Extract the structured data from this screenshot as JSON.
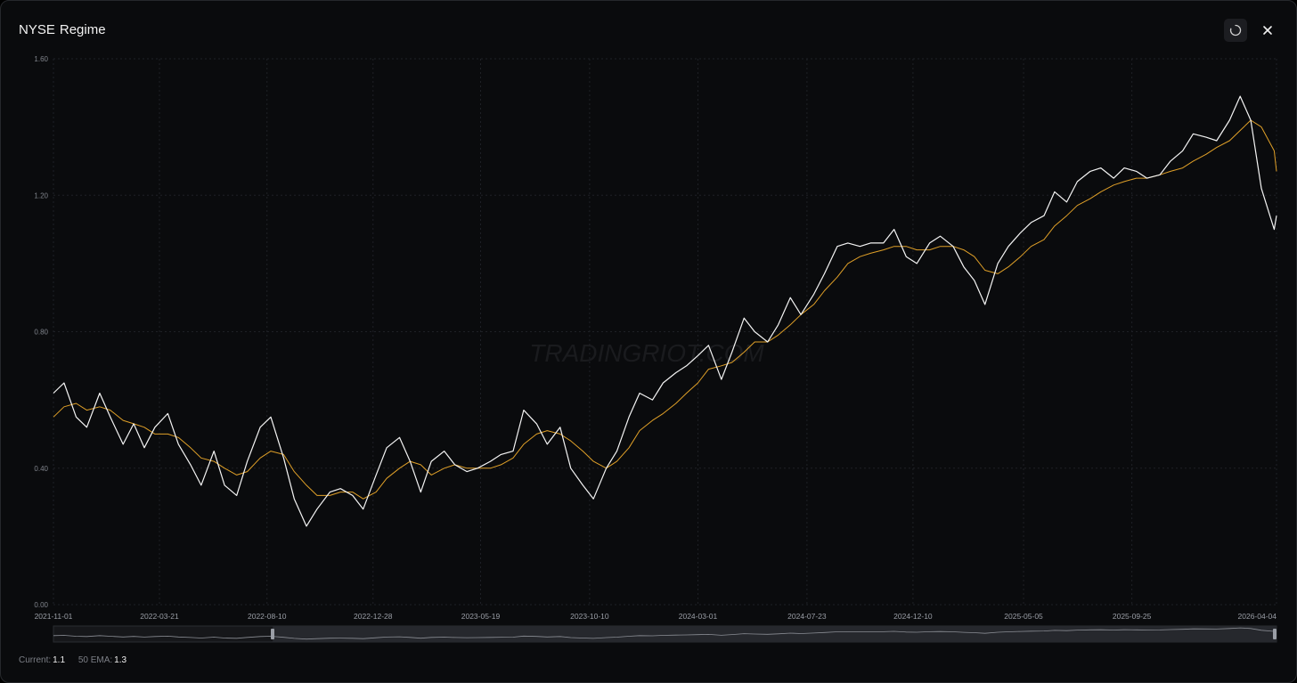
{
  "header": {
    "title": [
      "NYSE",
      "Regime"
    ]
  },
  "chart_data": {
    "type": "line",
    "watermark": "TRADINGRIOT.COM",
    "x": [
      "2021-11-01",
      "2021-11-15",
      "2021-12-01",
      "2021-12-15",
      "2022-01-01",
      "2022-01-15",
      "2022-02-01",
      "2022-02-15",
      "2022-03-01",
      "2022-03-15",
      "2022-04-01",
      "2022-04-15",
      "2022-05-01",
      "2022-05-15",
      "2022-06-01",
      "2022-06-15",
      "2022-07-01",
      "2022-07-15",
      "2022-08-01",
      "2022-08-15",
      "2022-09-01",
      "2022-09-15",
      "2022-10-01",
      "2022-10-15",
      "2022-11-01",
      "2022-11-15",
      "2022-12-01",
      "2022-12-15",
      "2023-01-01",
      "2023-01-15",
      "2023-02-01",
      "2023-02-15",
      "2023-03-01",
      "2023-03-15",
      "2023-04-01",
      "2023-04-15",
      "2023-05-01",
      "2023-05-15",
      "2023-06-01",
      "2023-06-15",
      "2023-07-01",
      "2023-07-15",
      "2023-08-01",
      "2023-08-15",
      "2023-09-01",
      "2023-09-15",
      "2023-10-01",
      "2023-10-15",
      "2023-11-01",
      "2023-11-15",
      "2023-12-01",
      "2023-12-15",
      "2024-01-01",
      "2024-01-15",
      "2024-02-01",
      "2024-02-15",
      "2024-03-01",
      "2024-03-15",
      "2024-04-01",
      "2024-04-15",
      "2024-05-01",
      "2024-05-15",
      "2024-06-01",
      "2024-06-15",
      "2024-07-01",
      "2024-07-15",
      "2024-08-01",
      "2024-08-15",
      "2024-09-01",
      "2024-09-15",
      "2024-10-01",
      "2024-10-15",
      "2024-11-01",
      "2024-11-15",
      "2024-12-01",
      "2024-12-15",
      "2025-01-01",
      "2025-01-15",
      "2025-02-01",
      "2025-02-15",
      "2025-03-01",
      "2025-03-15",
      "2025-04-01",
      "2025-04-15",
      "2025-05-01",
      "2025-05-15",
      "2025-06-01",
      "2025-06-15",
      "2025-07-01",
      "2025-07-15",
      "2025-08-01",
      "2025-08-15",
      "2025-09-01",
      "2025-09-15",
      "2025-10-01",
      "2025-10-15",
      "2025-11-01",
      "2025-11-15",
      "2025-12-01",
      "2025-12-15",
      "2026-01-01",
      "2026-01-15",
      "2026-02-01",
      "2026-02-15",
      "2026-03-01",
      "2026-03-15",
      "2026-04-01",
      "2026-04-04"
    ],
    "series": [
      {
        "color": "#f4f4f4",
        "values": [
          0.62,
          0.65,
          0.55,
          0.52,
          0.62,
          0.55,
          0.47,
          0.53,
          0.46,
          0.52,
          0.56,
          0.47,
          0.41,
          0.35,
          0.45,
          0.35,
          0.32,
          0.42,
          0.52,
          0.55,
          0.43,
          0.31,
          0.23,
          0.28,
          0.33,
          0.34,
          0.32,
          0.28,
          0.38,
          0.46,
          0.49,
          0.42,
          0.33,
          0.42,
          0.45,
          0.41,
          0.39,
          0.4,
          0.42,
          0.44,
          0.45,
          0.57,
          0.53,
          0.47,
          0.52,
          0.4,
          0.35,
          0.31,
          0.4,
          0.45,
          0.55,
          0.62,
          0.6,
          0.65,
          0.68,
          0.7,
          0.73,
          0.76,
          0.66,
          0.74,
          0.84,
          0.8,
          0.77,
          0.82,
          0.9,
          0.85,
          0.91,
          0.97,
          1.05,
          1.06,
          1.05,
          1.06,
          1.06,
          1.1,
          1.02,
          1.0,
          1.06,
          1.08,
          1.05,
          0.99,
          0.95,
          0.88,
          1.0,
          1.05,
          1.09,
          1.12,
          1.14,
          1.21,
          1.18,
          1.24,
          1.27,
          1.28,
          1.25,
          1.28,
          1.27,
          1.25,
          1.26,
          1.3,
          1.33,
          1.38,
          1.37,
          1.36,
          1.42,
          1.49,
          1.42,
          1.22,
          1.1,
          1.14
        ]
      },
      {
        "color": "#e0a028",
        "values": [
          0.55,
          0.58,
          0.59,
          0.57,
          0.58,
          0.57,
          0.54,
          0.53,
          0.52,
          0.5,
          0.5,
          0.49,
          0.46,
          0.43,
          0.42,
          0.4,
          0.38,
          0.39,
          0.43,
          0.45,
          0.44,
          0.39,
          0.35,
          0.32,
          0.32,
          0.33,
          0.33,
          0.31,
          0.33,
          0.37,
          0.4,
          0.42,
          0.41,
          0.38,
          0.4,
          0.41,
          0.4,
          0.4,
          0.4,
          0.41,
          0.43,
          0.47,
          0.5,
          0.51,
          0.5,
          0.48,
          0.45,
          0.42,
          0.4,
          0.42,
          0.46,
          0.51,
          0.54,
          0.56,
          0.59,
          0.62,
          0.65,
          0.69,
          0.7,
          0.71,
          0.74,
          0.77,
          0.77,
          0.79,
          0.82,
          0.85,
          0.88,
          0.92,
          0.96,
          1.0,
          1.02,
          1.03,
          1.04,
          1.05,
          1.05,
          1.04,
          1.04,
          1.05,
          1.05,
          1.04,
          1.02,
          0.98,
          0.97,
          0.99,
          1.02,
          1.05,
          1.07,
          1.11,
          1.14,
          1.17,
          1.19,
          1.21,
          1.23,
          1.24,
          1.25,
          1.25,
          1.26,
          1.27,
          1.28,
          1.3,
          1.32,
          1.34,
          1.36,
          1.39,
          1.42,
          1.4,
          1.33,
          1.27
        ]
      }
    ],
    "xlim": [
      "2021-11-01",
      "2026-04-04"
    ],
    "xticks": [
      "2021-11-01",
      "2022-03-21",
      "2022-08-10",
      "2022-12-28",
      "2023-05-19",
      "2023-10-10",
      "2024-03-01",
      "2024-07-23",
      "2024-12-10",
      "2025-05-05",
      "2025-09-25",
      "2026-04-04"
    ],
    "ylim": [
      0,
      1.6
    ],
    "yticks": [
      {
        "value": 0,
        "label": "0.00"
      },
      {
        "value": 0.4,
        "label": "0.40"
      },
      {
        "value": 0.8,
        "label": "0.80"
      },
      {
        "value": 1.2,
        "label": "1.20"
      },
      {
        "value": 1.6,
        "label": "1.60"
      }
    ],
    "grid": true
  },
  "footer": {
    "current": {
      "label": "Current:",
      "value": 1.1
    },
    "ema": {
      "label": "50 EMA:",
      "value": 1.3
    }
  }
}
